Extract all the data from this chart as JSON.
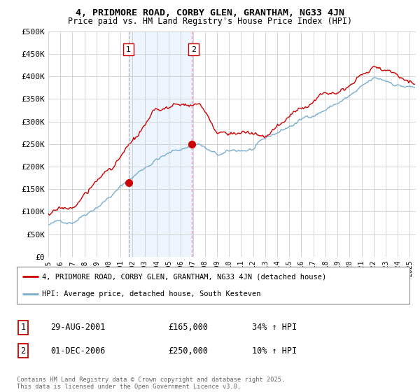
{
  "title": "4, PRIDMORE ROAD, CORBY GLEN, GRANTHAM, NG33 4JN",
  "subtitle": "Price paid vs. HM Land Registry's House Price Index (HPI)",
  "ylabel_ticks": [
    "£0",
    "£50K",
    "£100K",
    "£150K",
    "£200K",
    "£250K",
    "£300K",
    "£350K",
    "£400K",
    "£450K",
    "£500K"
  ],
  "ytick_values": [
    0,
    50000,
    100000,
    150000,
    200000,
    250000,
    300000,
    350000,
    400000,
    450000,
    500000
  ],
  "ylim": [
    0,
    500000
  ],
  "xlim_start": 1995.0,
  "xlim_end": 2025.5,
  "bg_color": "#ffffff",
  "plot_bg_color": "#ffffff",
  "red_color": "#cc0000",
  "blue_color": "#7aadcf",
  "sale1_x": 2001.66,
  "sale1_y": 165000,
  "sale2_x": 2006.92,
  "sale2_y": 250000,
  "legend_label_red": "4, PRIDMORE ROAD, CORBY GLEN, GRANTHAM, NG33 4JN (detached house)",
  "legend_label_blue": "HPI: Average price, detached house, South Kesteven",
  "annotation1_label": "1",
  "annotation2_label": "2",
  "sale1_date": "29-AUG-2001",
  "sale1_price": "£165,000",
  "sale1_hpi": "34% ↑ HPI",
  "sale2_date": "01-DEC-2006",
  "sale2_price": "£250,000",
  "sale2_hpi": "10% ↑ HPI",
  "footer": "Contains HM Land Registry data © Crown copyright and database right 2025.\nThis data is licensed under the Open Government Licence v3.0.",
  "vline1_color": "#aaaaaa",
  "vline2_color": "#dd88aa",
  "grid_color": "#cccccc",
  "shade_color": "#ddeeff",
  "shade_alpha": 0.5
}
